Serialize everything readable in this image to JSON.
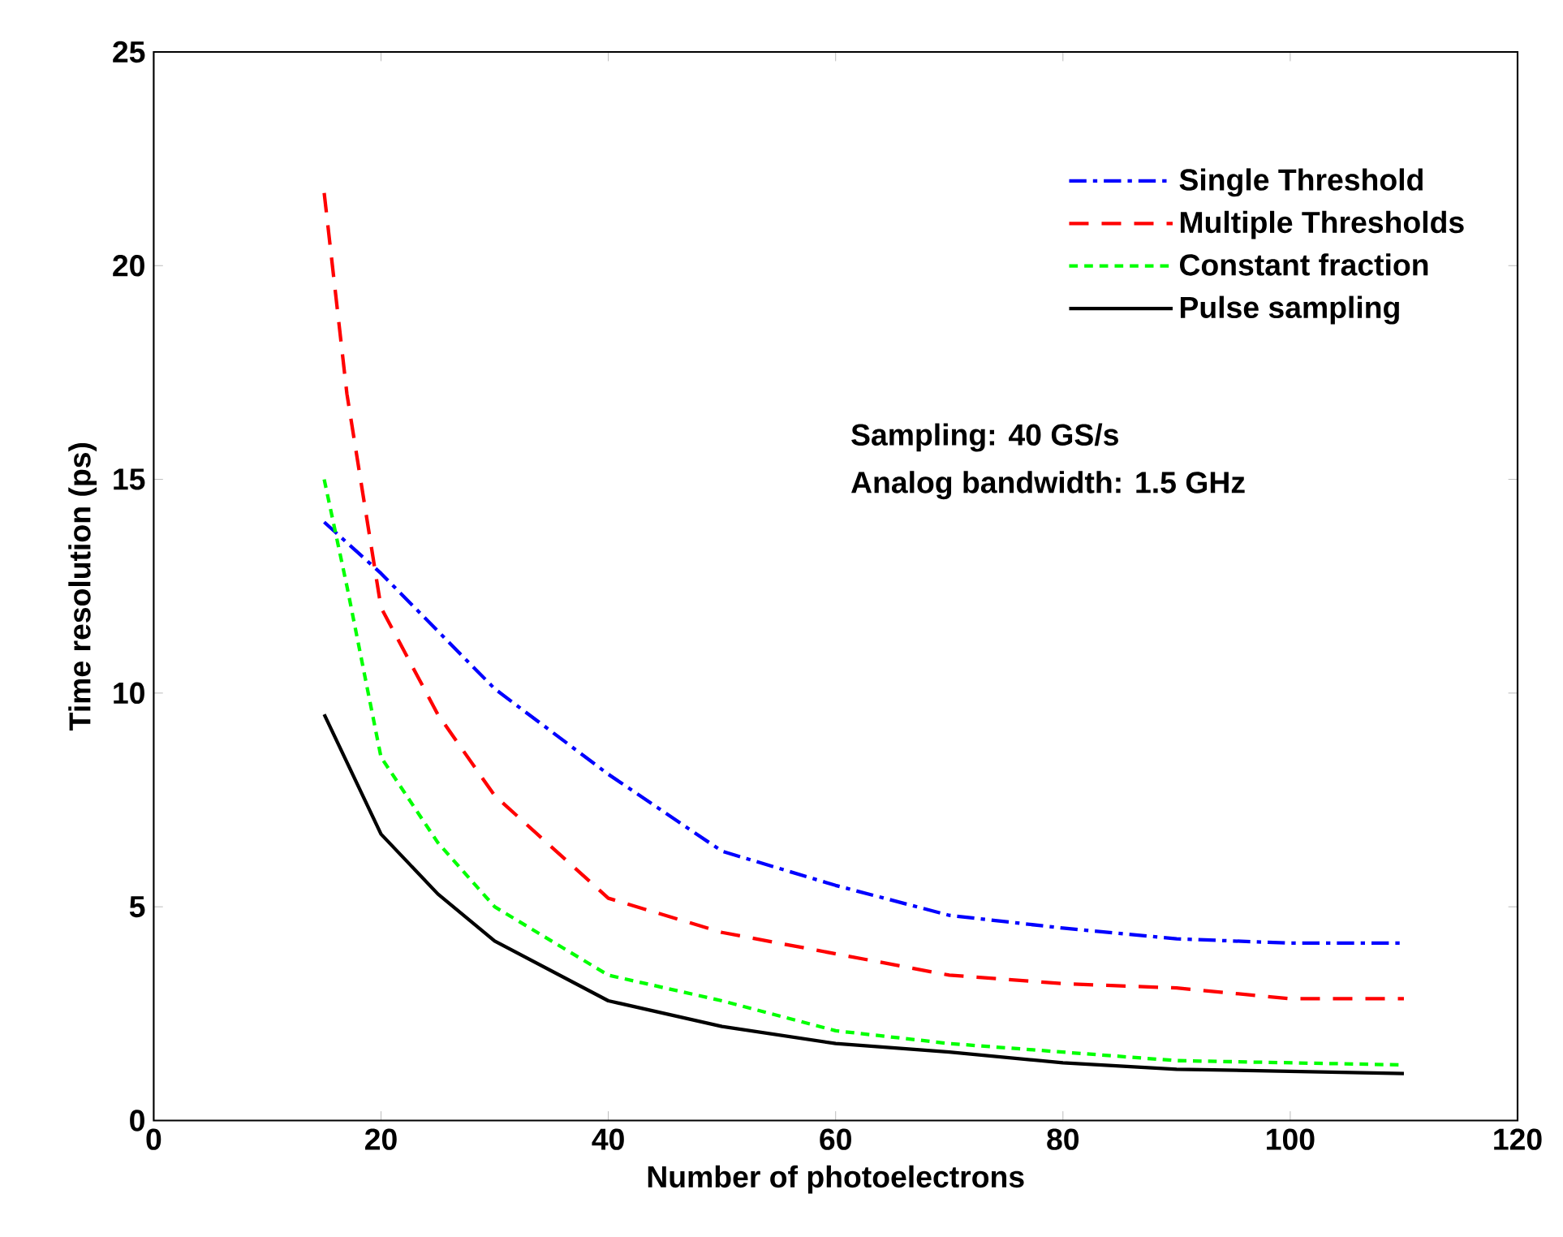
{
  "chart_data": {
    "type": "line",
    "xlabel": "Number of photoelectrons",
    "ylabel": "Time resolution (ps)",
    "xlim": [
      0,
      120
    ],
    "xticks": [
      0,
      20,
      40,
      60,
      80,
      100,
      120
    ],
    "ylim": [
      0,
      25
    ],
    "yticks": [
      0,
      5,
      10,
      15,
      20,
      25
    ],
    "legend": "top right",
    "grid": false,
    "marker": "none",
    "annotations": [
      "Sampling: 40 GS/s",
      "Analog bandwidth: 1.5 GHz"
    ],
    "series": [
      {
        "name": "Single Threshold",
        "color": "#0000ff",
        "line_style": "dashdot",
        "x": [
          15,
          20,
          30,
          40,
          50,
          60,
          70,
          80,
          90,
          100,
          110
        ],
        "values": [
          14,
          12.8,
          10.1,
          8.1,
          6.3,
          5.5,
          4.8,
          4.5,
          4.25,
          4.15,
          4.15
        ]
      },
      {
        "name": "Multiple Thresholds",
        "color": "#ff0000",
        "line_style": "dashed",
        "x": [
          15,
          17,
          20,
          25,
          30,
          40,
          50,
          60,
          70,
          80,
          90,
          100,
          110
        ],
        "values": [
          21.7,
          17,
          12,
          9.5,
          7.6,
          5.2,
          4.4,
          3.9,
          3.4,
          3.2,
          3.1,
          2.85,
          2.85
        ]
      },
      {
        "name": "Constant fraction",
        "color": "#00ff00",
        "line_style": "dotted",
        "x": [
          15,
          17,
          20,
          25,
          30,
          40,
          50,
          60,
          70,
          80,
          90,
          100,
          110
        ],
        "values": [
          15,
          12.5,
          8.5,
          6.5,
          5,
          3.4,
          2.8,
          2.1,
          1.8,
          1.6,
          1.4,
          1.35,
          1.3
        ]
      },
      {
        "name": "Pulse sampling",
        "color": "#000000",
        "line_style": "solid",
        "x": [
          15,
          20,
          25,
          30,
          40,
          50,
          60,
          70,
          80,
          90,
          100,
          110
        ],
        "values": [
          9.5,
          6.7,
          5.3,
          4.2,
          2.8,
          2.2,
          1.8,
          1.6,
          1.35,
          1.2,
          1.15,
          1.1
        ]
      }
    ]
  }
}
